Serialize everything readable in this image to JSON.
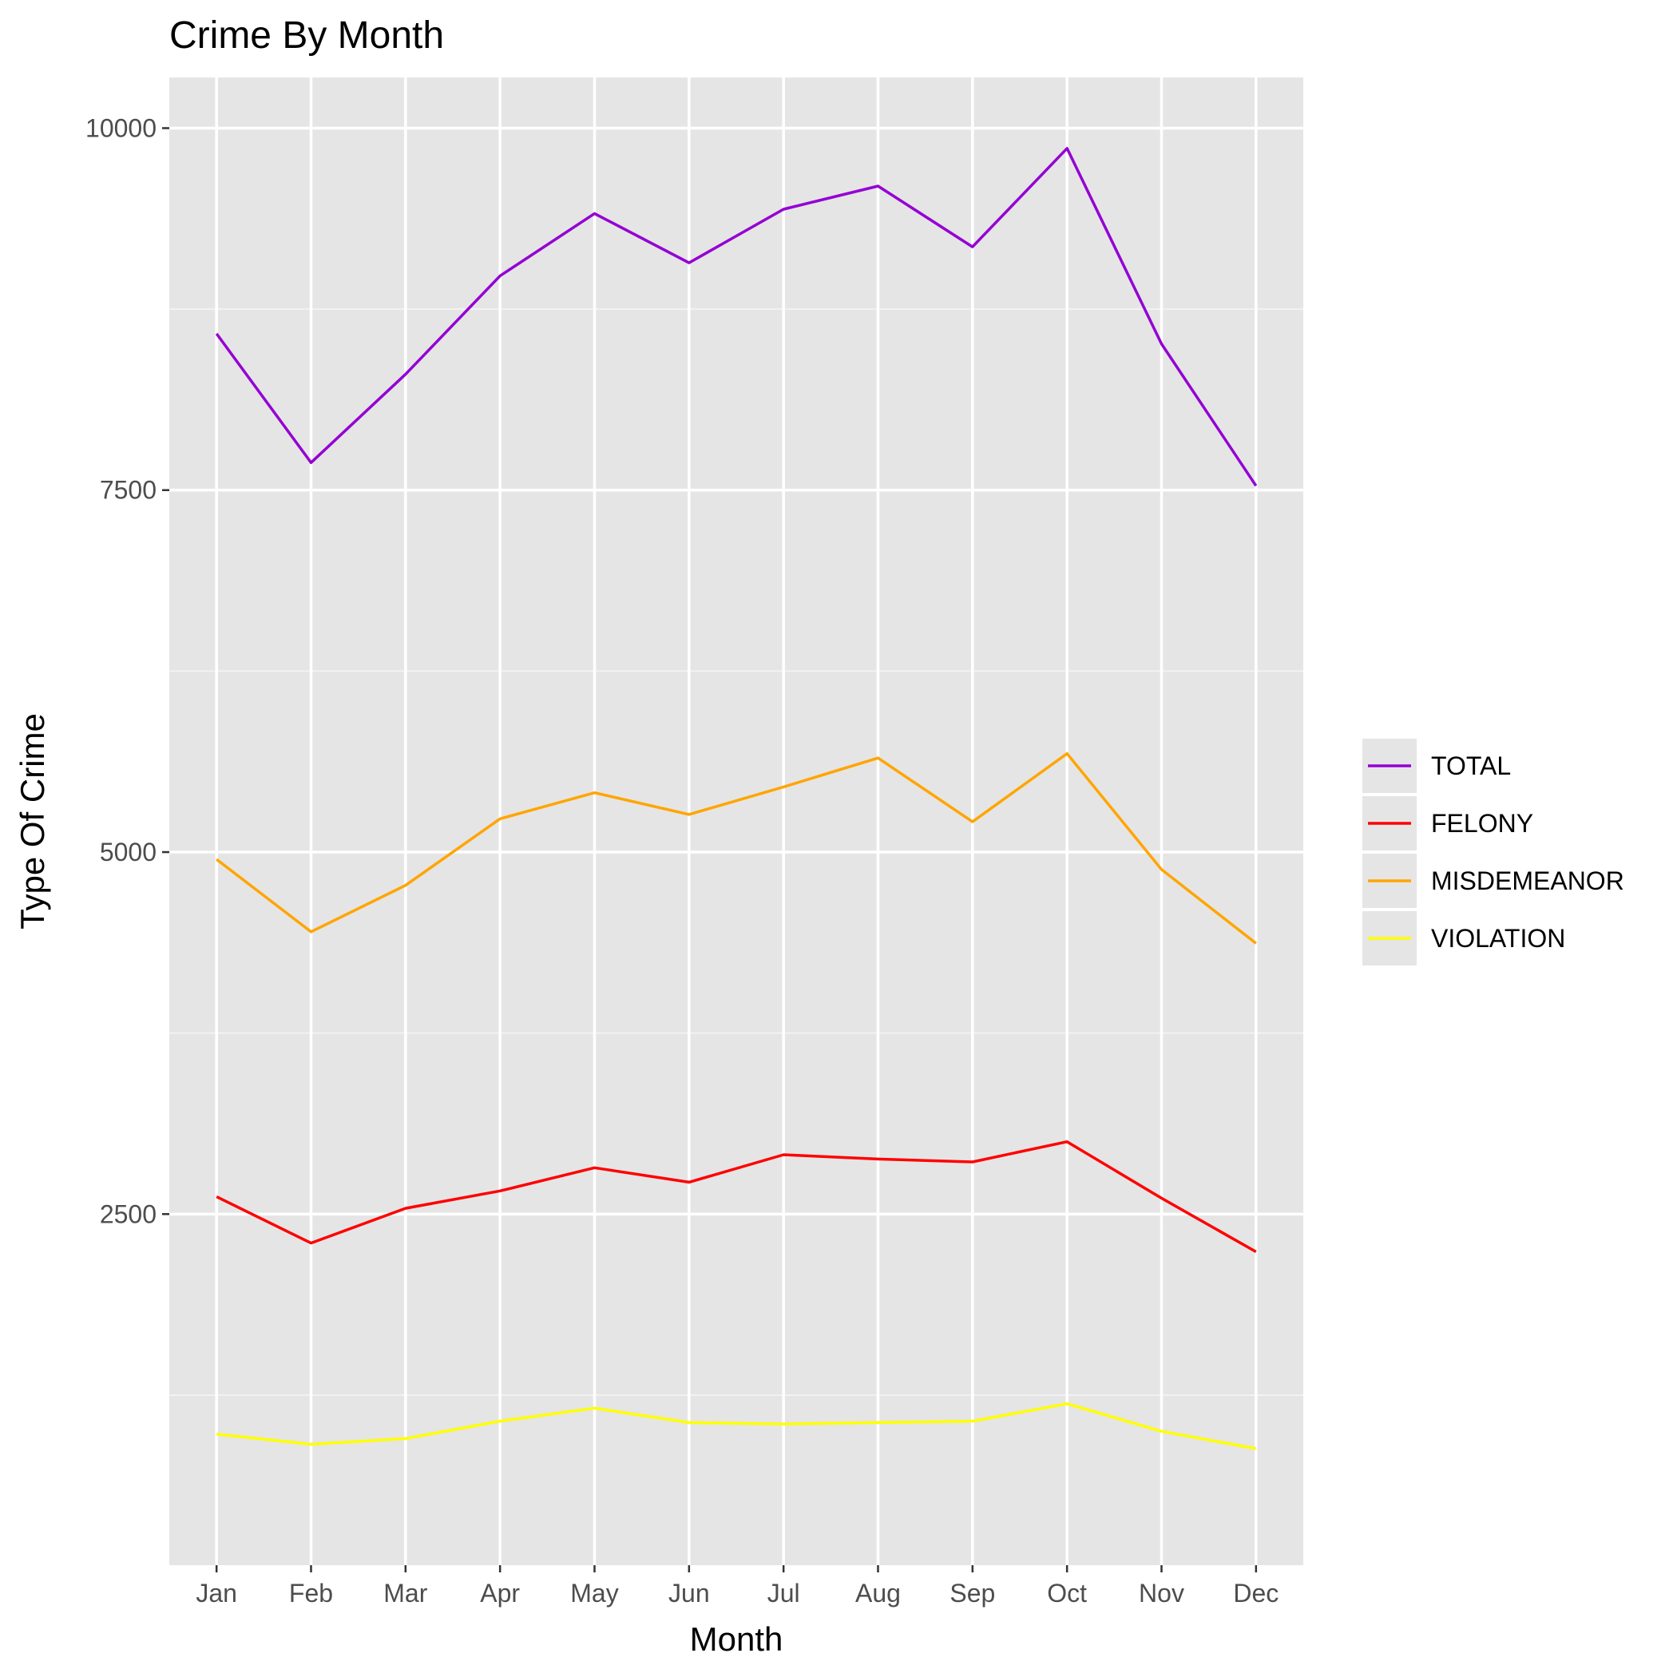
{
  "chart_data": {
    "type": "line",
    "title": "Crime By Month",
    "xlabel": "Month",
    "ylabel": "Type Of Crime",
    "categories": [
      "Jan",
      "Feb",
      "Mar",
      "Apr",
      "May",
      "Jun",
      "Jul",
      "Aug",
      "Sep",
      "Oct",
      "Nov",
      "Dec"
    ],
    "y_ticks": [
      2500,
      5000,
      7500,
      10000
    ],
    "ylim": [
      75,
      10350
    ],
    "grid": true,
    "legend_position": "right",
    "background": "#e5e5e5",
    "series": [
      {
        "name": "TOTAL",
        "color": "#9400d3",
        "values": [
          8580,
          7690,
          8300,
          8980,
          9410,
          9070,
          9440,
          9600,
          9180,
          9860,
          8510,
          7530
        ]
      },
      {
        "name": "FELONY",
        "color": "#ff0000",
        "values": [
          2620,
          2300,
          2540,
          2660,
          2820,
          2720,
          2910,
          2880,
          2860,
          3000,
          2610,
          2240
        ]
      },
      {
        "name": "MISDEMEANOR",
        "color": "#ffa500",
        "values": [
          4950,
          4450,
          4770,
          5230,
          5410,
          5260,
          5450,
          5650,
          5210,
          5680,
          4880,
          4370
        ]
      },
      {
        "name": "VIOLATION",
        "color": "#ffff00",
        "values": [
          980,
          910,
          950,
          1070,
          1160,
          1060,
          1050,
          1060,
          1070,
          1190,
          1000,
          880
        ]
      }
    ]
  }
}
